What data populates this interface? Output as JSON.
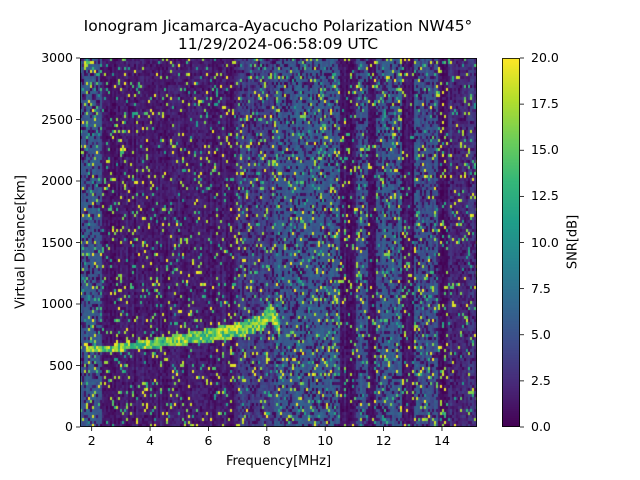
{
  "chart_data": {
    "type": "heatmap",
    "title": "Ionogram Jicamarca-Ayacucho Polarization NW45°",
    "subtitle": "11/29/2024-06:58:09 UTC",
    "xlabel": "Frequency[MHz]",
    "ylabel": "Virtual Distance[km]",
    "xlim": [
      1.6,
      15.2
    ],
    "ylim": [
      0,
      3000
    ],
    "xticks": [
      "2",
      "4",
      "6",
      "8",
      "10",
      "12",
      "14"
    ],
    "xtick_values": [
      2,
      4,
      6,
      8,
      10,
      12,
      14
    ],
    "yticks": [
      "0",
      "500",
      "1000",
      "1500",
      "2000",
      "2500",
      "3000"
    ],
    "ytick_values": [
      0,
      500,
      1000,
      1500,
      2000,
      2500,
      3000
    ],
    "colorbar": {
      "label": "SNR[dB]",
      "colormap": "viridis",
      "range": [
        0,
        20
      ],
      "ticks": [
        "0.0",
        "2.5",
        "5.0",
        "7.5",
        "10.0",
        "12.5",
        "15.0",
        "17.5",
        "20.0"
      ],
      "tick_values": [
        0,
        2.5,
        5,
        7.5,
        10,
        12.5,
        15,
        17.5,
        20
      ]
    },
    "echo_trace": [
      {
        "freq": 1.8,
        "distance": 640
      },
      {
        "freq": 3.0,
        "distance": 660
      },
      {
        "freq": 4.0,
        "distance": 690
      },
      {
        "freq": 5.0,
        "distance": 720
      },
      {
        "freq": 6.0,
        "distance": 760
      },
      {
        "freq": 7.0,
        "distance": 800
      },
      {
        "freq": 7.8,
        "distance": 860
      },
      {
        "freq": 8.1,
        "distance": 950
      },
      {
        "freq": 8.4,
        "distance": 820
      }
    ],
    "background_bands": [
      {
        "from": 1.6,
        "to": 2.3,
        "snr": 5.5
      },
      {
        "from": 2.3,
        "to": 7.0,
        "snr": 1.5
      },
      {
        "from": 7.0,
        "to": 8.2,
        "snr": 4.0
      },
      {
        "from": 8.2,
        "to": 10.5,
        "snr": 5.8
      },
      {
        "from": 10.5,
        "to": 11.0,
        "snr": 1.0
      },
      {
        "from": 11.0,
        "to": 11.4,
        "snr": 5.5
      },
      {
        "from": 11.4,
        "to": 11.7,
        "snr": 0.5
      },
      {
        "from": 11.7,
        "to": 12.6,
        "snr": 5.5
      },
      {
        "from": 12.6,
        "to": 13.0,
        "snr": 1.0
      },
      {
        "from": 13.0,
        "to": 13.8,
        "snr": 5.2
      },
      {
        "from": 13.8,
        "to": 14.2,
        "snr": 1.0
      },
      {
        "from": 14.2,
        "to": 15.2,
        "snr": 3.0
      }
    ]
  }
}
